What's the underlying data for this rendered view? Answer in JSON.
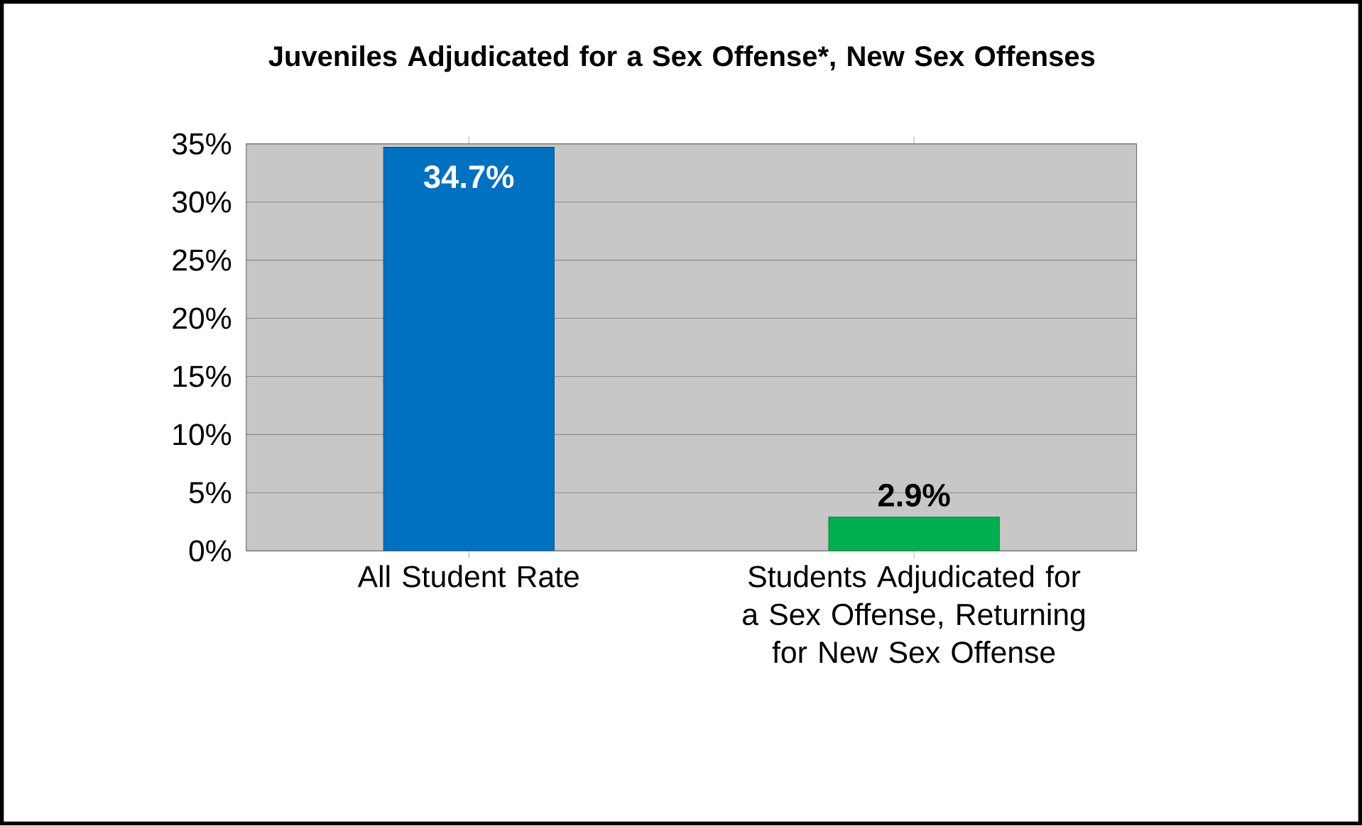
{
  "chart_data": {
    "type": "bar",
    "title": "Juveniles Adjudicated for a Sex Offense*, New Sex Offenses",
    "categories": [
      "All Student Rate",
      "Students Adjudicated for a Sex Offense, Returning for New Sex Offense"
    ],
    "values": [
      34.7,
      2.9
    ],
    "colors": [
      "#0070c0",
      "#00b050"
    ],
    "value_labels": [
      "34.7%",
      "2.9%"
    ],
    "ylim": [
      0,
      35
    ],
    "yticks": [
      {
        "value": 0,
        "label": "0%"
      },
      {
        "value": 5,
        "label": "5%"
      },
      {
        "value": 10,
        "label": "10%"
      },
      {
        "value": 15,
        "label": "15%"
      },
      {
        "value": 20,
        "label": "20%"
      },
      {
        "value": 25,
        "label": "25%"
      },
      {
        "value": 30,
        "label": "30%"
      },
      {
        "value": 35,
        "label": "35%"
      }
    ],
    "grid": "y"
  }
}
